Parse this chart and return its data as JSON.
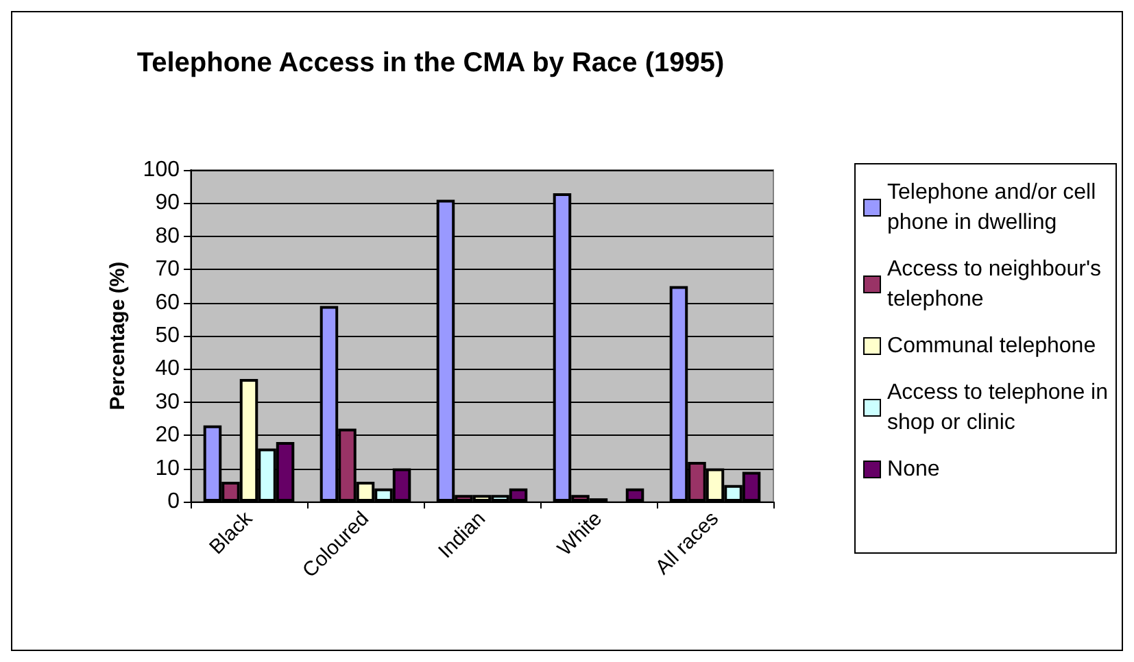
{
  "chart_data": {
    "type": "bar",
    "title": "Telephone Access in the CMA by Race (1995)",
    "ylabel": "Percentage (%)",
    "categories": [
      "Black",
      "Coloured",
      "Indian",
      "White",
      "All races"
    ],
    "series": [
      {
        "name": "Telephone and/or cell phone in dwelling",
        "color": "#9999ff",
        "values": [
          23,
          59,
          91,
          93,
          65
        ]
      },
      {
        "name": "Access to neighbour's telephone",
        "color": "#993366",
        "values": [
          6,
          22,
          2,
          2,
          12
        ]
      },
      {
        "name": "Communal telephone",
        "color": "#ffffcc",
        "values": [
          37,
          6,
          2,
          1,
          10
        ]
      },
      {
        "name": "Access to telephone in shop or clinic",
        "color": "#ccffff",
        "values": [
          16,
          4,
          2,
          0,
          5
        ]
      },
      {
        "name": "None",
        "color": "#660066",
        "values": [
          18,
          10,
          4,
          4,
          9
        ]
      }
    ],
    "ylim": [
      0,
      100
    ],
    "yticks": [
      0,
      10,
      20,
      30,
      40,
      50,
      60,
      70,
      80,
      90,
      100
    ],
    "grid": "y",
    "legend": "right"
  }
}
